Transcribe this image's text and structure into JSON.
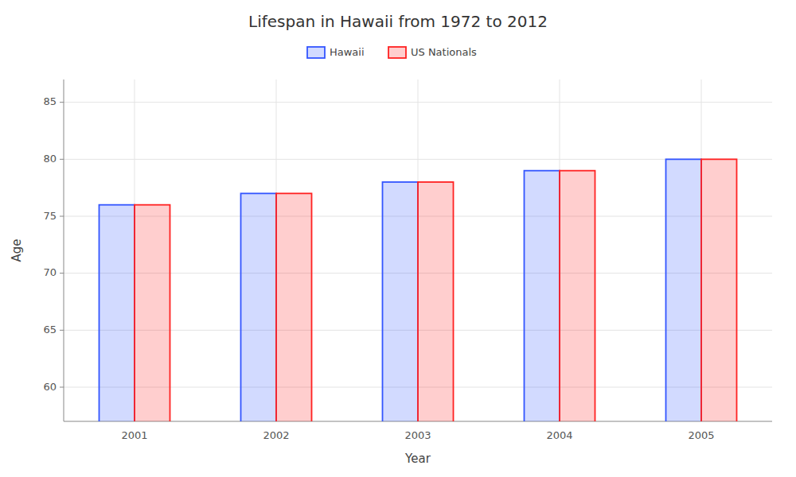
{
  "chart_data": {
    "type": "bar",
    "title": "Lifespan in Hawaii from 1972 to 2012",
    "x_label": "Year",
    "y_label": "Age",
    "categories": [
      "2001",
      "2002",
      "2003",
      "2004",
      "2005"
    ],
    "series": [
      {
        "name": "Hawaii",
        "color": "#3355ff",
        "values": [
          76,
          77,
          78,
          79,
          80
        ]
      },
      {
        "name": "US Nationals",
        "color": "#ff2222",
        "values": [
          76,
          77,
          78,
          79,
          80
        ]
      }
    ],
    "ylim": [
      57,
      87
    ],
    "yticks": [
      60,
      65,
      70,
      75,
      80,
      85
    ],
    "grid": true,
    "legend": "top"
  }
}
